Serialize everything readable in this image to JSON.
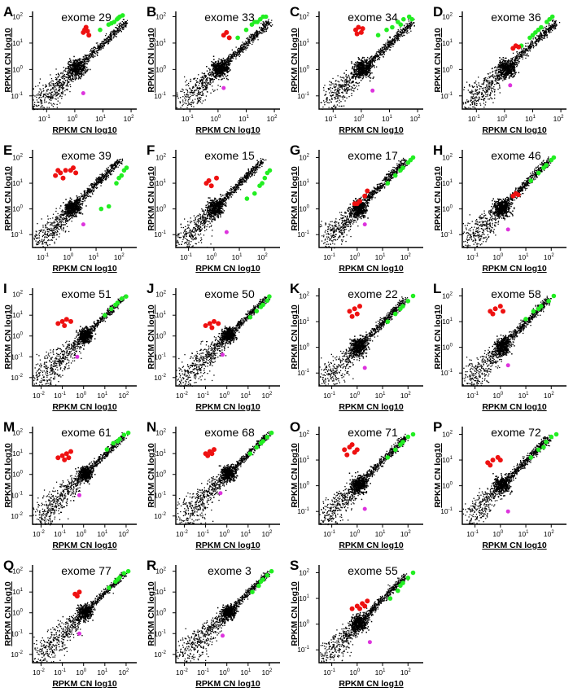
{
  "figure": {
    "ylabel": "RPKM CN log10",
    "xlabel": "RPKM CN log10",
    "colors": {
      "cloud": "#000000",
      "red": "#ee1111",
      "green": "#22ee22",
      "magenta": "#dd33dd"
    }
  },
  "chart_data": [
    {
      "letter": "A",
      "title": "exome 29",
      "type": "scatter",
      "xticks": [
        -1,
        0,
        1,
        2
      ],
      "yticks": [
        -1,
        0,
        1,
        2
      ],
      "xlim": [
        -1.5,
        2.2
      ],
      "ylim": [
        -1.5,
        2.2
      ],
      "red": [
        [
          0.3,
          1.4
        ],
        [
          0.4,
          1.6
        ],
        [
          0.5,
          1.3
        ],
        [
          0.35,
          1.5
        ],
        [
          0.45,
          1.45
        ]
      ],
      "green": [
        [
          0.9,
          1.5
        ],
        [
          1.2,
          1.7
        ],
        [
          1.4,
          1.8
        ],
        [
          1.5,
          1.9
        ],
        [
          1.6,
          2.0
        ],
        [
          1.7,
          2.05
        ],
        [
          1.3,
          1.75
        ],
        [
          1.55,
          1.95
        ]
      ],
      "magenta": [
        [
          0.3,
          -0.9
        ]
      ]
    },
    {
      "letter": "B",
      "title": "exome 33",
      "type": "scatter",
      "xticks": [
        -1,
        0,
        1,
        2
      ],
      "yticks": [
        -1,
        0,
        1,
        2
      ],
      "xlim": [
        -1.5,
        2.2
      ],
      "ylim": [
        -1.5,
        2.2
      ],
      "red": [
        [
          0.2,
          1.3
        ],
        [
          0.3,
          1.4
        ],
        [
          0.4,
          1.2
        ]
      ],
      "green": [
        [
          0.7,
          1.2
        ],
        [
          1.0,
          1.5
        ],
        [
          1.2,
          1.7
        ],
        [
          1.4,
          1.8
        ],
        [
          1.5,
          1.9
        ],
        [
          1.6,
          2.0
        ],
        [
          1.7,
          2.0
        ],
        [
          1.3,
          1.8
        ]
      ],
      "magenta": [
        [
          0.2,
          -0.7
        ]
      ]
    },
    {
      "letter": "C",
      "title": "exome 34",
      "type": "scatter",
      "xticks": [
        -1,
        0,
        1,
        2
      ],
      "yticks": [
        -1,
        0,
        1,
        2
      ],
      "xlim": [
        -1.5,
        2.2
      ],
      "ylim": [
        -1.5,
        2.2
      ],
      "red": [
        [
          -0.2,
          1.5
        ],
        [
          -0.1,
          1.6
        ],
        [
          0.0,
          1.4
        ],
        [
          -0.15,
          1.35
        ],
        [
          0.05,
          1.55
        ]
      ],
      "green": [
        [
          0.6,
          1.3
        ],
        [
          0.9,
          1.5
        ],
        [
          1.1,
          1.6
        ],
        [
          1.3,
          1.8
        ],
        [
          1.5,
          1.9
        ],
        [
          1.7,
          2.0
        ],
        [
          1.8,
          1.9
        ],
        [
          1.4,
          1.7
        ]
      ],
      "magenta": [
        [
          0.4,
          -0.8
        ]
      ]
    },
    {
      "letter": "D",
      "title": "exome 36",
      "type": "scatter",
      "xticks": [
        -1,
        0,
        1,
        2
      ],
      "yticks": [
        -1,
        0,
        1,
        2
      ],
      "xlim": [
        -1.5,
        2.2
      ],
      "ylim": [
        -1.5,
        2.2
      ],
      "red": [
        [
          0.3,
          0.8
        ],
        [
          0.4,
          0.9
        ],
        [
          0.5,
          0.85
        ]
      ],
      "green": [
        [
          0.6,
          0.9
        ],
        [
          0.9,
          1.2
        ],
        [
          1.1,
          1.4
        ],
        [
          1.3,
          1.6
        ],
        [
          1.5,
          1.8
        ],
        [
          1.7,
          2.0
        ],
        [
          1.2,
          1.5
        ],
        [
          1.6,
          1.9
        ],
        [
          1.0,
          1.3
        ]
      ],
      "magenta": [
        [
          0.2,
          -0.6
        ]
      ]
    },
    {
      "letter": "E",
      "title": "exome 39",
      "type": "scatter",
      "xticks": [
        -1,
        0,
        1,
        2
      ],
      "yticks": [
        -1,
        0,
        1,
        2
      ],
      "xlim": [
        -1.5,
        2.6
      ],
      "ylim": [
        -1.5,
        2.3
      ],
      "red": [
        [
          -0.6,
          1.3
        ],
        [
          -0.4,
          1.4
        ],
        [
          -0.2,
          1.5
        ],
        [
          0.0,
          1.5
        ],
        [
          -0.3,
          1.2
        ],
        [
          0.1,
          1.6
        ],
        [
          -0.5,
          1.5
        ],
        [
          0.2,
          1.4
        ]
      ],
      "green": [
        [
          1.2,
          0.0
        ],
        [
          1.5,
          0.1
        ],
        [
          1.8,
          1.0
        ],
        [
          2.0,
          1.3
        ],
        [
          2.1,
          1.5
        ],
        [
          2.2,
          1.6
        ],
        [
          1.9,
          1.2
        ]
      ],
      "magenta": [
        [
          0.5,
          -0.6
        ]
      ]
    },
    {
      "letter": "F",
      "title": "exome 15",
      "type": "scatter",
      "xticks": [
        -1,
        0,
        1,
        2
      ],
      "yticks": [
        -1,
        0,
        1,
        2
      ],
      "xlim": [
        -1.5,
        2.6
      ],
      "ylim": [
        -1.5,
        2.3
      ],
      "red": [
        [
          -0.3,
          1.0
        ],
        [
          -0.2,
          1.1
        ],
        [
          0.1,
          1.2
        ],
        [
          -0.1,
          0.9
        ]
      ],
      "green": [
        [
          1.3,
          0.4
        ],
        [
          1.6,
          0.6
        ],
        [
          1.8,
          0.9
        ],
        [
          2.0,
          1.2
        ],
        [
          2.1,
          1.4
        ],
        [
          2.2,
          1.5
        ],
        [
          1.9,
          1.0
        ]
      ],
      "magenta": [
        [
          0.5,
          -0.9
        ]
      ]
    },
    {
      "letter": "G",
      "title": "exome 17",
      "type": "scatter",
      "xticks": [
        -1,
        0,
        1,
        2
      ],
      "yticks": [
        -1,
        0,
        1,
        2
      ],
      "xlim": [
        -1.5,
        2.6
      ],
      "ylim": [
        -1.5,
        2.3
      ],
      "red": [
        [
          -0.1,
          0.2
        ],
        [
          0.1,
          0.3
        ],
        [
          0.3,
          0.5
        ],
        [
          0.0,
          0.2
        ],
        [
          0.4,
          0.7
        ]
      ],
      "green": [
        [
          1.2,
          1.0
        ],
        [
          1.5,
          1.3
        ],
        [
          1.8,
          1.6
        ],
        [
          2.0,
          1.8
        ],
        [
          2.1,
          1.9
        ],
        [
          2.2,
          2.0
        ],
        [
          1.7,
          1.5
        ]
      ],
      "magenta": [
        [
          0.3,
          -0.6
        ]
      ]
    },
    {
      "letter": "H",
      "title": "exome 46",
      "type": "scatter",
      "xticks": [
        -1,
        0,
        1,
        2
      ],
      "yticks": [
        -1,
        0,
        1,
        2
      ],
      "xlim": [
        -1.5,
        2.6
      ],
      "ylim": [
        -1.5,
        2.3
      ],
      "red": [
        [
          0.5,
          0.5
        ],
        [
          0.6,
          0.6
        ],
        [
          0.7,
          0.55
        ]
      ],
      "green": [
        [
          1.2,
          1.1
        ],
        [
          1.5,
          1.4
        ],
        [
          1.8,
          1.7
        ],
        [
          2.0,
          1.9
        ],
        [
          2.1,
          2.0
        ],
        [
          1.7,
          1.6
        ]
      ],
      "magenta": [
        [
          0.3,
          -0.8
        ]
      ]
    },
    {
      "letter": "I",
      "title": "exome 51",
      "type": "scatter",
      "xticks": [
        -2,
        -1,
        0,
        1,
        2
      ],
      "yticks": [
        -2,
        -1,
        0,
        1,
        2
      ],
      "xlim": [
        -2.4,
        2.5
      ],
      "ylim": [
        -2.4,
        2.3
      ],
      "red": [
        [
          -1.2,
          0.6
        ],
        [
          -1.0,
          0.7
        ],
        [
          -0.8,
          0.8
        ],
        [
          -0.6,
          0.7
        ],
        [
          -0.9,
          0.5
        ]
      ],
      "green": [
        [
          1.0,
          1.0
        ],
        [
          1.3,
          1.3
        ],
        [
          1.6,
          1.6
        ],
        [
          1.8,
          1.8
        ],
        [
          2.0,
          1.9
        ],
        [
          1.5,
          1.5
        ]
      ],
      "magenta": [
        [
          -0.3,
          -1.0
        ]
      ]
    },
    {
      "letter": "J",
      "title": "exome 50",
      "type": "scatter",
      "xticks": [
        -2,
        -1,
        0,
        1,
        2
      ],
      "yticks": [
        -2,
        -1,
        0,
        1,
        2
      ],
      "xlim": [
        -2.4,
        2.5
      ],
      "ylim": [
        -2.4,
        2.3
      ],
      "red": [
        [
          -1.0,
          0.5
        ],
        [
          -0.8,
          0.6
        ],
        [
          -0.6,
          0.7
        ],
        [
          -0.4,
          0.6
        ],
        [
          -0.7,
          0.4
        ]
      ],
      "green": [
        [
          1.1,
          0.9
        ],
        [
          1.4,
          1.2
        ],
        [
          1.7,
          1.5
        ],
        [
          1.9,
          1.7
        ],
        [
          2.0,
          1.9
        ],
        [
          1.6,
          1.4
        ]
      ],
      "magenta": [
        [
          -0.2,
          -0.9
        ]
      ]
    },
    {
      "letter": "K",
      "title": "exome 22",
      "type": "scatter",
      "xticks": [
        -1,
        0,
        1,
        2
      ],
      "yticks": [
        -1,
        0,
        1,
        2
      ],
      "xlim": [
        -1.5,
        2.6
      ],
      "ylim": [
        -1.5,
        2.3
      ],
      "red": [
        [
          -0.3,
          1.4
        ],
        [
          -0.1,
          1.5
        ],
        [
          0.0,
          1.3
        ],
        [
          -0.2,
          1.2
        ],
        [
          0.1,
          1.6
        ]
      ],
      "green": [
        [
          1.2,
          1.0
        ],
        [
          1.5,
          1.3
        ],
        [
          1.8,
          1.6
        ],
        [
          2.0,
          1.8
        ],
        [
          2.2,
          2.0
        ],
        [
          1.7,
          1.5
        ]
      ],
      "magenta": [
        [
          0.3,
          -0.8
        ]
      ]
    },
    {
      "letter": "L",
      "title": "exome 58",
      "type": "scatter",
      "xticks": [
        -1,
        0,
        1,
        2
      ],
      "yticks": [
        -1,
        0,
        1,
        2
      ],
      "xlim": [
        -1.5,
        2.6
      ],
      "ylim": [
        -1.5,
        2.3
      ],
      "red": [
        [
          -0.4,
          1.4
        ],
        [
          -0.2,
          1.5
        ],
        [
          0.0,
          1.6
        ],
        [
          -0.3,
          1.3
        ],
        [
          0.1,
          1.4
        ]
      ],
      "green": [
        [
          1.0,
          1.1
        ],
        [
          1.3,
          1.4
        ],
        [
          1.6,
          1.6
        ],
        [
          1.9,
          1.8
        ],
        [
          2.1,
          2.0
        ],
        [
          1.5,
          1.5
        ]
      ],
      "magenta": [
        [
          0.3,
          -0.7
        ]
      ]
    },
    {
      "letter": "M",
      "title": "exome 61",
      "type": "scatter",
      "xticks": [
        -2,
        -1,
        0,
        1,
        2
      ],
      "yticks": [
        -2,
        -1,
        0,
        1,
        2
      ],
      "xlim": [
        -2.4,
        2.5
      ],
      "ylim": [
        -2.4,
        2.3
      ],
      "red": [
        [
          -1.2,
          0.8
        ],
        [
          -1.0,
          0.9
        ],
        [
          -0.8,
          1.0
        ],
        [
          -0.6,
          1.1
        ],
        [
          -0.9,
          0.7
        ],
        [
          -0.7,
          0.8
        ]
      ],
      "green": [
        [
          1.1,
          1.2
        ],
        [
          1.4,
          1.5
        ],
        [
          1.7,
          1.7
        ],
        [
          1.9,
          1.9
        ],
        [
          2.1,
          2.0
        ],
        [
          1.6,
          1.6
        ]
      ],
      "magenta": [
        [
          -0.2,
          -1.0
        ]
      ]
    },
    {
      "letter": "N",
      "title": "exome 68",
      "type": "scatter",
      "xticks": [
        -2,
        -1,
        0,
        1,
        2
      ],
      "yticks": [
        -2,
        -1,
        0,
        1,
        2
      ],
      "xlim": [
        -2.4,
        2.5
      ],
      "ylim": [
        -2.4,
        2.3
      ],
      "red": [
        [
          -1.0,
          1.0
        ],
        [
          -0.8,
          1.1
        ],
        [
          -0.6,
          1.2
        ],
        [
          -0.9,
          0.9
        ],
        [
          -0.7,
          1.0
        ]
      ],
      "green": [
        [
          1.1,
          1.0
        ],
        [
          1.4,
          1.3
        ],
        [
          1.7,
          1.6
        ],
        [
          1.9,
          1.8
        ],
        [
          2.1,
          2.0
        ],
        [
          1.6,
          1.5
        ]
      ],
      "magenta": [
        [
          -0.3,
          -0.9
        ]
      ]
    },
    {
      "letter": "O",
      "title": "exome 71",
      "type": "scatter",
      "xticks": [
        -1,
        0,
        1,
        2
      ],
      "yticks": [
        -1,
        0,
        1,
        2
      ],
      "xlim": [
        -1.5,
        2.6
      ],
      "ylim": [
        -1.5,
        2.3
      ],
      "red": [
        [
          -0.5,
          1.4
        ],
        [
          -0.3,
          1.5
        ],
        [
          -0.1,
          1.3
        ],
        [
          -0.4,
          1.2
        ],
        [
          0.0,
          1.4
        ],
        [
          -0.2,
          1.6
        ]
      ],
      "green": [
        [
          1.2,
          1.1
        ],
        [
          1.5,
          1.4
        ],
        [
          1.8,
          1.7
        ],
        [
          2.0,
          1.9
        ],
        [
          2.2,
          2.0
        ],
        [
          1.7,
          1.6
        ]
      ],
      "magenta": [
        [
          0.3,
          -0.9
        ]
      ]
    },
    {
      "letter": "P",
      "title": "exome 72",
      "type": "scatter",
      "xticks": [
        -1,
        0,
        1,
        2
      ],
      "yticks": [
        -1,
        0,
        1,
        2
      ],
      "xlim": [
        -1.5,
        2.6
      ],
      "ylim": [
        -1.5,
        2.3
      ],
      "red": [
        [
          -0.5,
          0.9
        ],
        [
          -0.3,
          1.0
        ],
        [
          -0.1,
          1.1
        ],
        [
          0.0,
          1.0
        ],
        [
          -0.4,
          0.8
        ]
      ],
      "green": [
        [
          1.2,
          1.1
        ],
        [
          1.5,
          1.4
        ],
        [
          1.8,
          1.7
        ],
        [
          2.0,
          1.9
        ],
        [
          2.2,
          2.0
        ],
        [
          1.7,
          1.5
        ]
      ],
      "magenta": [
        [
          0.3,
          -1.0
        ]
      ]
    },
    {
      "letter": "Q",
      "title": "exome 77",
      "type": "scatter",
      "xticks": [
        -2,
        -1,
        0,
        1,
        2
      ],
      "yticks": [
        -2,
        -1,
        0,
        1,
        2
      ],
      "xlim": [
        -2.4,
        2.5
      ],
      "ylim": [
        -2.4,
        2.3
      ],
      "red": [
        [
          -0.4,
          0.9
        ],
        [
          -0.2,
          1.0
        ],
        [
          -0.3,
          0.8
        ]
      ],
      "green": [
        [
          1.2,
          1.2
        ],
        [
          1.5,
          1.5
        ],
        [
          1.7,
          1.7
        ],
        [
          1.9,
          1.9
        ],
        [
          2.1,
          2.0
        ],
        [
          1.6,
          1.6
        ]
      ],
      "magenta": [
        [
          -0.2,
          -1.0
        ]
      ]
    },
    {
      "letter": "R",
      "title": "exome 3",
      "type": "scatter",
      "xticks": [
        -2,
        -1,
        0,
        1,
        2
      ],
      "yticks": [
        -2,
        -1,
        0,
        1,
        2
      ],
      "xlim": [
        -2.4,
        2.5
      ],
      "ylim": [
        -2.4,
        2.3
      ],
      "red": [],
      "green": [
        [
          1.2,
          1.0
        ],
        [
          1.5,
          1.3
        ],
        [
          1.7,
          1.6
        ],
        [
          1.9,
          1.8
        ],
        [
          2.1,
          2.0
        ],
        [
          1.6,
          1.5
        ]
      ],
      "magenta": [
        [
          -0.2,
          -1.1
        ]
      ]
    },
    {
      "letter": "S",
      "title": "exome 55",
      "type": "scatter",
      "xticks": [
        -1,
        0,
        1,
        2
      ],
      "yticks": [
        -1,
        0,
        1,
        2
      ],
      "xlim": [
        -1.5,
        2.6
      ],
      "ylim": [
        -1.5,
        2.3
      ],
      "red": [
        [
          -0.2,
          0.6
        ],
        [
          0.0,
          0.7
        ],
        [
          0.2,
          0.8
        ],
        [
          0.4,
          0.9
        ],
        [
          0.1,
          0.6
        ],
        [
          0.3,
          0.7
        ]
      ],
      "green": [
        [
          1.3,
          1.0
        ],
        [
          1.6,
          1.3
        ],
        [
          1.8,
          1.6
        ],
        [
          2.0,
          1.8
        ],
        [
          2.2,
          2.0
        ],
        [
          1.7,
          1.5
        ]
      ],
      "magenta": [
        [
          0.5,
          -0.7
        ]
      ]
    }
  ]
}
